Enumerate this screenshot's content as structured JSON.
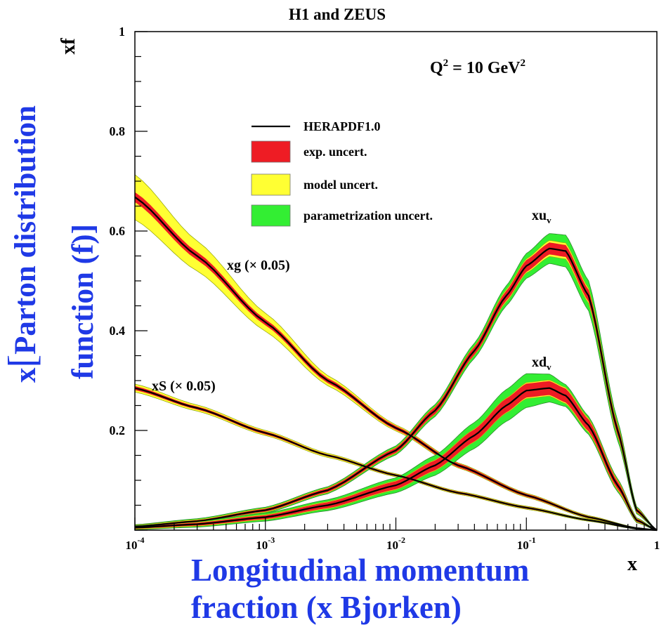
{
  "chart_data": {
    "type": "line",
    "title": "H1 and ZEUS",
    "annotation": "Q² = 10 GeV²",
    "xlabel": "x",
    "ylabel": "xf",
    "x_scale": "log",
    "xlim": [
      0.0001,
      1
    ],
    "ylim": [
      0,
      1
    ],
    "x_ticks": [
      {
        "value": 0.0001,
        "base": "10",
        "exp": "-4"
      },
      {
        "value": 0.001,
        "base": "10",
        "exp": "-3"
      },
      {
        "value": 0.01,
        "base": "10",
        "exp": "-2"
      },
      {
        "value": 0.1,
        "base": "10",
        "exp": "-1"
      },
      {
        "value": 1,
        "base": "1",
        "exp": ""
      }
    ],
    "y_ticks": [
      {
        "value": 0.2,
        "label": "0.2"
      },
      {
        "value": 0.4,
        "label": "0.4"
      },
      {
        "value": 0.6,
        "label": "0.6"
      },
      {
        "value": 0.8,
        "label": "0.8"
      },
      {
        "value": 1,
        "label": "1"
      }
    ],
    "legend": {
      "placement": "upper-center",
      "entries": [
        {
          "label": "HERAPDF1.0",
          "kind": "line",
          "color": "#000000"
        },
        {
          "label": "exp. uncert.",
          "kind": "band",
          "color": "#ee1c24"
        },
        {
          "label": "model uncert.",
          "kind": "band",
          "color": "#ffff33"
        },
        {
          "label": "parametrization uncert.",
          "kind": "band",
          "color": "#33ee33"
        }
      ]
    },
    "colors": {
      "exp": "#ee1c24",
      "model": "#ffff33",
      "param": "#33ee33",
      "central": "#000000"
    },
    "series": [
      {
        "name": "xg (× 0.05)",
        "x": [
          0.0001,
          0.0003,
          0.001,
          0.003,
          0.01,
          0.03,
          0.1,
          0.3,
          0.7,
          1
        ],
        "central": [
          0.668,
          0.55,
          0.417,
          0.3,
          0.205,
          0.13,
          0.07,
          0.026,
          0.004,
          0
        ],
        "exp": [
          0.01,
          0.008,
          0.006,
          0.005,
          0.004,
          0.004,
          0.003,
          0.002,
          0.001,
          0
        ],
        "model": [
          0.045,
          0.03,
          0.018,
          0.01,
          0.006,
          0.005,
          0.004,
          0.003,
          0.001,
          0
        ],
        "param": [
          0.045,
          0.03,
          0.018,
          0.01,
          0.006,
          0.005,
          0.004,
          0.003,
          0.001,
          0
        ]
      },
      {
        "name": "xS (× 0.05)",
        "x": [
          0.0001,
          0.0003,
          0.001,
          0.003,
          0.01,
          0.03,
          0.1,
          0.3,
          0.7,
          1
        ],
        "central": [
          0.285,
          0.245,
          0.195,
          0.15,
          0.11,
          0.075,
          0.045,
          0.02,
          0.003,
          0
        ],
        "exp": [
          0.004,
          0.003,
          0.003,
          0.002,
          0.002,
          0.002,
          0.002,
          0.001,
          0.001,
          0
        ],
        "model": [
          0.008,
          0.006,
          0.005,
          0.004,
          0.003,
          0.003,
          0.003,
          0.002,
          0.001,
          0
        ],
        "param": [
          0.008,
          0.006,
          0.005,
          0.004,
          0.003,
          0.003,
          0.003,
          0.002,
          0.001,
          0
        ]
      },
      {
        "name": "xu_v",
        "x": [
          0.0001,
          0.0003,
          0.001,
          0.003,
          0.01,
          0.02,
          0.04,
          0.07,
          0.1,
          0.15,
          0.2,
          0.3,
          0.5,
          0.7,
          1
        ],
        "central": [
          0.007,
          0.018,
          0.04,
          0.08,
          0.16,
          0.24,
          0.36,
          0.47,
          0.53,
          0.565,
          0.56,
          0.47,
          0.2,
          0.04,
          0
        ],
        "exp": [
          0.002,
          0.002,
          0.003,
          0.004,
          0.005,
          0.007,
          0.008,
          0.01,
          0.012,
          0.012,
          0.012,
          0.012,
          0.01,
          0.004,
          0
        ],
        "model": [
          0.003,
          0.003,
          0.004,
          0.005,
          0.006,
          0.008,
          0.009,
          0.012,
          0.014,
          0.016,
          0.016,
          0.015,
          0.012,
          0.005,
          0
        ],
        "param": [
          0.004,
          0.005,
          0.006,
          0.007,
          0.009,
          0.012,
          0.015,
          0.02,
          0.025,
          0.03,
          0.032,
          0.03,
          0.02,
          0.007,
          0
        ]
      },
      {
        "name": "xd_v",
        "x": [
          0.0001,
          0.0003,
          0.001,
          0.003,
          0.01,
          0.02,
          0.04,
          0.07,
          0.1,
          0.15,
          0.2,
          0.3,
          0.5,
          0.7,
          1
        ],
        "central": [
          0.005,
          0.012,
          0.026,
          0.05,
          0.09,
          0.13,
          0.19,
          0.25,
          0.28,
          0.285,
          0.27,
          0.21,
          0.09,
          0.02,
          0
        ],
        "exp": [
          0.002,
          0.003,
          0.004,
          0.006,
          0.008,
          0.01,
          0.012,
          0.014,
          0.014,
          0.014,
          0.014,
          0.012,
          0.008,
          0.003,
          0
        ],
        "model": [
          0.003,
          0.004,
          0.005,
          0.007,
          0.009,
          0.011,
          0.013,
          0.015,
          0.016,
          0.016,
          0.016,
          0.014,
          0.01,
          0.004,
          0
        ],
        "param": [
          0.004,
          0.006,
          0.008,
          0.011,
          0.015,
          0.02,
          0.026,
          0.032,
          0.034,
          0.028,
          0.022,
          0.018,
          0.013,
          0.005,
          0
        ]
      }
    ]
  },
  "overlay": {
    "side_label_bracket": "[",
    "side_label_line1_prefix": "x",
    "side_label_line1_text": "Parton distribution",
    "side_label_line2": "function (f)]",
    "bottom_label_line1": "Longitudinal momentum",
    "bottom_label_line2": "fraction (x Bjorken)"
  }
}
